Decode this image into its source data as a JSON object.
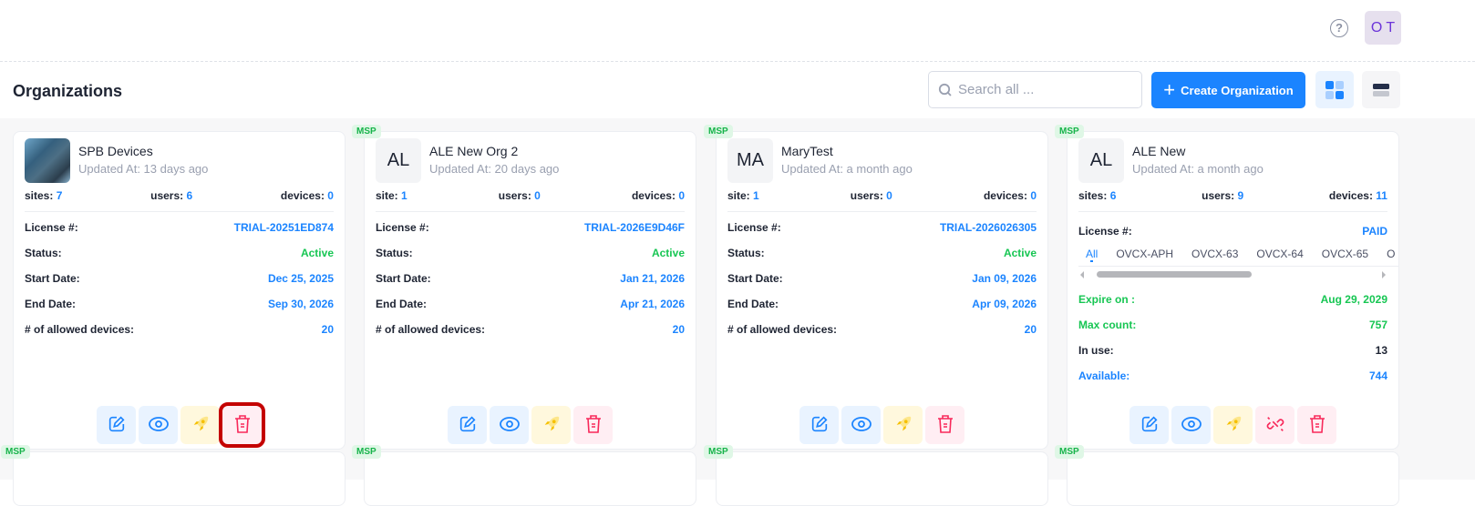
{
  "header": {
    "help_icon": "question-circle-icon",
    "avatar_initials": "O T"
  },
  "page": {
    "title": "Organizations",
    "search_placeholder": "Search all ...",
    "create_label": "Create Organization",
    "create_icon": "+"
  },
  "colors": {
    "accent": "#1b84ff",
    "success": "#17c653",
    "danger": "#f8285a",
    "warning": "#f6c000"
  },
  "cards": [
    {
      "badge": "",
      "name": "SPB Devices",
      "logo": "image",
      "updated": "Updated At: 13 days ago",
      "stats": [
        {
          "label": "sites:",
          "value": "7"
        },
        {
          "label": "users:",
          "value": "6"
        },
        {
          "label": "devices:",
          "value": "0"
        }
      ],
      "rows": [
        {
          "label": "License #:",
          "value": "TRIAL-20251ED874",
          "color": "blue"
        },
        {
          "label": "Status:",
          "value": "Active",
          "color": "green"
        },
        {
          "label": "Start Date:",
          "value": "Dec 25, 2025",
          "color": "blue"
        },
        {
          "label": "End Date:",
          "value": "Sep 30, 2026",
          "color": "blue"
        },
        {
          "label": "# of allowed devices:",
          "value": "20",
          "color": "blue"
        }
      ],
      "highlight_delete": true
    },
    {
      "badge": "MSP",
      "name": "ALE New Org 2",
      "logo": "AL",
      "updated": "Updated At: 20 days ago",
      "stats": [
        {
          "label": "site:",
          "value": "1"
        },
        {
          "label": "users:",
          "value": "0"
        },
        {
          "label": "devices:",
          "value": "0"
        }
      ],
      "rows": [
        {
          "label": "License #:",
          "value": "TRIAL-2026E9D46F",
          "color": "blue"
        },
        {
          "label": "Status:",
          "value": "Active",
          "color": "green"
        },
        {
          "label": "Start Date:",
          "value": "Jan 21, 2026",
          "color": "blue"
        },
        {
          "label": "End Date:",
          "value": "Apr 21, 2026",
          "color": "blue"
        },
        {
          "label": "# of allowed devices:",
          "value": "20",
          "color": "blue"
        }
      ]
    },
    {
      "badge": "MSP",
      "name": "MaryTest",
      "logo": "MA",
      "updated": "Updated At: a month ago",
      "stats": [
        {
          "label": "site:",
          "value": "1"
        },
        {
          "label": "users:",
          "value": "0"
        },
        {
          "label": "devices:",
          "value": "0"
        }
      ],
      "rows": [
        {
          "label": "License #:",
          "value": "TRIAL-2026026305",
          "color": "blue"
        },
        {
          "label": "Status:",
          "value": "Active",
          "color": "green"
        },
        {
          "label": "Start Date:",
          "value": "Jan 09, 2026",
          "color": "blue"
        },
        {
          "label": "End Date:",
          "value": "Apr 09, 2026",
          "color": "blue"
        },
        {
          "label": "# of allowed devices:",
          "value": "20",
          "color": "blue"
        }
      ]
    },
    {
      "badge": "MSP",
      "name": "ALE New",
      "logo": "AL",
      "updated": "Updated At: a month ago",
      "stats": [
        {
          "label": "sites:",
          "value": "6"
        },
        {
          "label": "users:",
          "value": "9"
        },
        {
          "label": "devices:",
          "value": "11"
        }
      ],
      "license": {
        "label": "License #:",
        "value": "PAID",
        "tabs": [
          "All",
          "OVCX-APH",
          "OVCX-63",
          "OVCX-64",
          "OVCX-65",
          "O"
        ],
        "active_tab": "All"
      },
      "rows": [
        {
          "label": "Expire on :",
          "value": "Aug 29, 2029",
          "color": "green"
        },
        {
          "label": "Max count:",
          "value": "757",
          "color": "green"
        },
        {
          "label": "In use:",
          "value": "13",
          "color": "dark"
        },
        {
          "label": "Available:",
          "value": "744",
          "color": "blue"
        }
      ],
      "has_unlink": true
    }
  ],
  "next_row_badges": [
    "MSP",
    "MSP",
    "MSP",
    "MSP"
  ]
}
